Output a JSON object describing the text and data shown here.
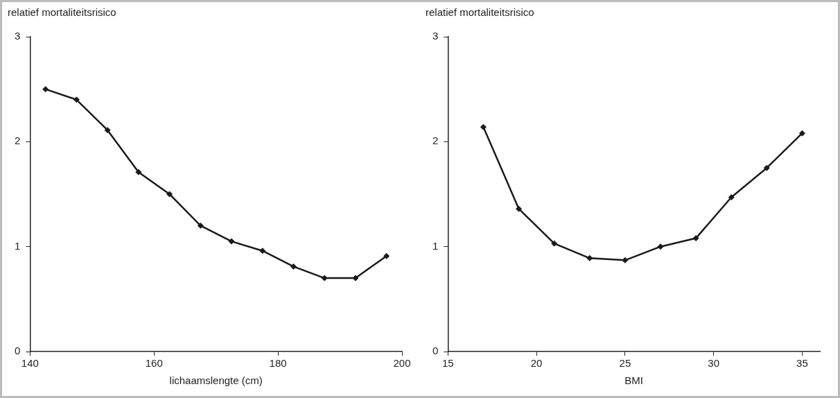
{
  "chart_data": [
    {
      "type": "line",
      "ylabel": "relatief mortaliteitsrisico",
      "xlabel": "lichaamslengte (cm)",
      "x": [
        142.5,
        147.5,
        152.5,
        157.5,
        162.5,
        167.5,
        172.5,
        177.5,
        182.5,
        187.5,
        192.5,
        197.5
      ],
      "series": [
        {
          "color": "#1a1a1a",
          "values": [
            2.5,
            2.4,
            2.11,
            1.71,
            1.5,
            1.2,
            1.05,
            0.96,
            0.81,
            0.7,
            0.7,
            0.91
          ]
        }
      ],
      "xlim": [
        140,
        200
      ],
      "xticks": [
        140,
        160,
        180,
        200
      ],
      "ylim": [
        0,
        3
      ],
      "yticks": [
        0,
        1,
        2,
        3
      ],
      "grid": false,
      "legend": false,
      "marker": "diamond",
      "line_style": "solid"
    },
    {
      "type": "line",
      "ylabel": "relatief mortaliteitsrisico",
      "xlabel": "BMI",
      "x": [
        17,
        19,
        21,
        23,
        25,
        27,
        29,
        31,
        33,
        35
      ],
      "series": [
        {
          "color": "#1a1a1a",
          "values": [
            2.14,
            1.36,
            1.03,
            0.89,
            0.87,
            1.0,
            1.08,
            1.47,
            1.75,
            2.08
          ]
        }
      ],
      "xlim": [
        15,
        36
      ],
      "xticks": [
        15,
        20,
        25,
        30,
        35
      ],
      "ylim": [
        0,
        3
      ],
      "yticks": [
        0,
        1,
        2,
        3
      ],
      "grid": false,
      "legend": false,
      "marker": "diamond",
      "line_style": "solid"
    }
  ]
}
